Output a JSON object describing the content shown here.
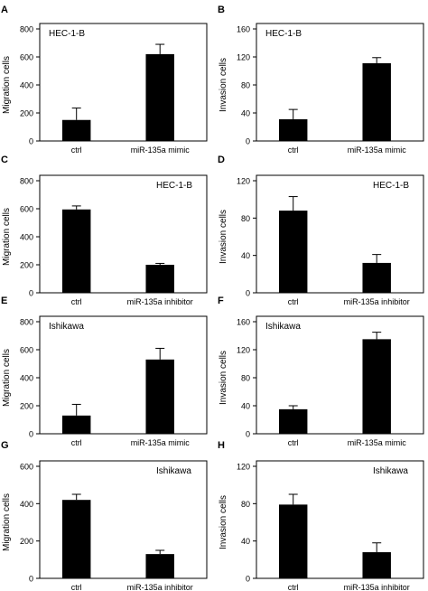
{
  "chart_data": [
    {
      "panel": "A",
      "type": "bar",
      "inset_label": "HEC-1-B",
      "ylabel": "Migration cells",
      "categories": [
        "ctrl",
        "miR-135a mimic"
      ],
      "values": [
        150,
        620
      ],
      "errors": [
        85,
        70
      ],
      "ylim": [
        0,
        800
      ],
      "yticks": [
        "0",
        "200",
        "400",
        "600",
        "800"
      ]
    },
    {
      "panel": "B",
      "type": "bar",
      "inset_label": "HEC-1-B",
      "ylabel": "Invasion cells",
      "categories": [
        "ctrl",
        "miR-135a mimic"
      ],
      "values": [
        31,
        111
      ],
      "errors": [
        14,
        8
      ],
      "ylim": [
        0,
        160
      ],
      "yticks": [
        "0",
        "40",
        "80",
        "120",
        "160"
      ]
    },
    {
      "panel": "C",
      "type": "bar",
      "inset_label": "HEC-1-B",
      "ylabel": "Migration cells",
      "categories": [
        "ctrl",
        "miR-135a inhibitor"
      ],
      "values": [
        595,
        200
      ],
      "errors": [
        25,
        10
      ],
      "ylim": [
        0,
        800
      ],
      "yticks": [
        "0",
        "200",
        "400",
        "600",
        "800"
      ]
    },
    {
      "panel": "D",
      "type": "bar",
      "inset_label": "HEC-1-B",
      "ylabel": "Invasion cells",
      "categories": [
        "ctrl",
        "miR-135a inhibitor"
      ],
      "values": [
        88,
        32
      ],
      "errors": [
        15,
        9
      ],
      "ylim": [
        0,
        120
      ],
      "yticks": [
        "0",
        "40",
        "80",
        "120"
      ]
    },
    {
      "panel": "E",
      "type": "bar",
      "inset_label": "Ishikawa",
      "ylabel": "Migration  cells",
      "categories": [
        "ctrl",
        "miR-135a mimic"
      ],
      "values": [
        130,
        530
      ],
      "errors": [
        80,
        80
      ],
      "ylim": [
        0,
        800
      ],
      "yticks": [
        "0",
        "200",
        "400",
        "600",
        "800"
      ]
    },
    {
      "panel": "F",
      "type": "bar",
      "inset_label": "Ishikawa",
      "ylabel": "Invasion cells",
      "categories": [
        "ctrl",
        "miR-135a mimic"
      ],
      "values": [
        35,
        135
      ],
      "errors": [
        5,
        10
      ],
      "ylim": [
        0,
        160
      ],
      "yticks": [
        "0",
        "40",
        "80",
        "120",
        "160"
      ]
    },
    {
      "panel": "G",
      "type": "bar",
      "inset_label": "Ishikawa",
      "ylabel": "Migration cells",
      "categories": [
        "ctrl",
        "miR-135a inhibitor"
      ],
      "values": [
        420,
        130
      ],
      "errors": [
        30,
        20
      ],
      "ylim": [
        0,
        600
      ],
      "yticks": [
        "0",
        "200",
        "400",
        "600"
      ]
    },
    {
      "panel": "H",
      "type": "bar",
      "inset_label": "Ishikawa",
      "ylabel": "Invasion cells",
      "categories": [
        "ctrl",
        "miR-135a inhibitor"
      ],
      "values": [
        79,
        28
      ],
      "errors": [
        11,
        10
      ],
      "ylim": [
        0,
        120
      ],
      "yticks": [
        "0",
        "40",
        "80",
        "120"
      ]
    }
  ]
}
